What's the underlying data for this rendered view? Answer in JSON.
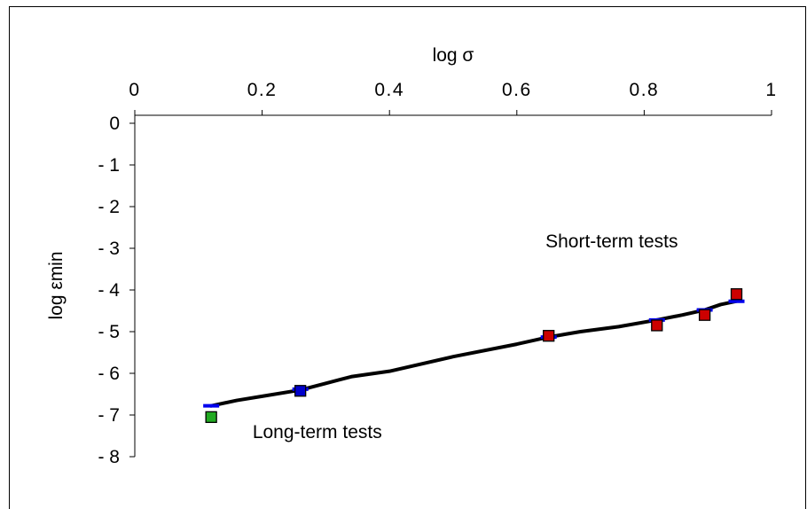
{
  "chart_data": {
    "type": "scatter",
    "title": "",
    "xlabel": "log σ",
    "ylabel": "log εmin",
    "xlim": [
      0,
      1
    ],
    "ylim": [
      -8,
      0
    ],
    "x_ticks": [
      0,
      0.2,
      0.4,
      0.6,
      0.8,
      1
    ],
    "x_tick_labels": [
      "0",
      "0.2",
      "0.4",
      "0.6",
      "0.8",
      "1"
    ],
    "y_ticks": [
      0,
      -1,
      -2,
      -3,
      -4,
      -5,
      -6,
      -7,
      -8
    ],
    "y_tick_labels": [
      "0",
      "- 1",
      "- 2",
      "- 3",
      "- 4",
      "- 5",
      "- 6",
      "- 7",
      "- 8"
    ],
    "x_axis_position": "top",
    "grid": false,
    "legend": "none",
    "series": [
      {
        "kind": "markers",
        "color": "#cc0000",
        "x": [
          0.65,
          0.82,
          0.895,
          0.945
        ],
        "y": [
          -5.1,
          -4.85,
          -4.6,
          -4.1
        ]
      },
      {
        "kind": "markers",
        "color": "#22aa22",
        "x": [
          0.12
        ],
        "y": [
          -7.05
        ]
      },
      {
        "kind": "markers",
        "color": "#0000cc",
        "x": [
          0.26
        ],
        "y": [
          -6.42
        ]
      },
      {
        "kind": "dashes",
        "color": "#0000ee",
        "x": [
          0.12,
          0.26,
          0.65,
          0.82,
          0.895,
          0.945
        ],
        "y": [
          -6.78,
          -6.38,
          -5.13,
          -4.72,
          -4.48,
          -4.27
        ]
      },
      {
        "kind": "curve",
        "color": "#000000",
        "x": [
          0.12,
          0.16,
          0.2,
          0.26,
          0.3,
          0.34,
          0.4,
          0.5,
          0.6,
          0.65,
          0.7,
          0.76,
          0.82,
          0.86,
          0.895,
          0.92,
          0.945
        ],
        "y": [
          -6.78,
          -6.65,
          -6.55,
          -6.4,
          -6.24,
          -6.08,
          -5.95,
          -5.6,
          -5.3,
          -5.13,
          -5.0,
          -4.88,
          -4.72,
          -4.6,
          -4.48,
          -4.35,
          -4.27
        ]
      }
    ],
    "annotations": [
      {
        "text": "Short-term  tests",
        "x": 0.645,
        "y": -2.98
      },
      {
        "text": "Long-term  tests",
        "x": 0.185,
        "y": -7.55
      }
    ]
  }
}
